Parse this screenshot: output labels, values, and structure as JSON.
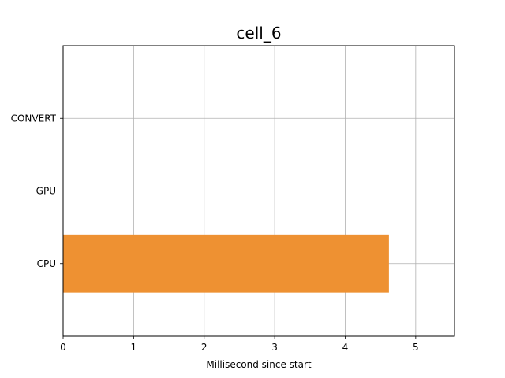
{
  "chart_data": {
    "type": "bar",
    "orientation": "horizontal",
    "title": "cell_6",
    "xlabel": "Millisecond since start",
    "ylabel": "",
    "categories": [
      "CPU",
      "GPU",
      "CONVERT"
    ],
    "bars": [
      {
        "category": "CPU",
        "start": 0,
        "end": 4.62,
        "color": "#ee9132"
      }
    ],
    "xlim": [
      0,
      5.55
    ],
    "xticks": [
      0,
      1,
      2,
      3,
      4,
      5
    ],
    "grid": true,
    "legend": "none"
  }
}
